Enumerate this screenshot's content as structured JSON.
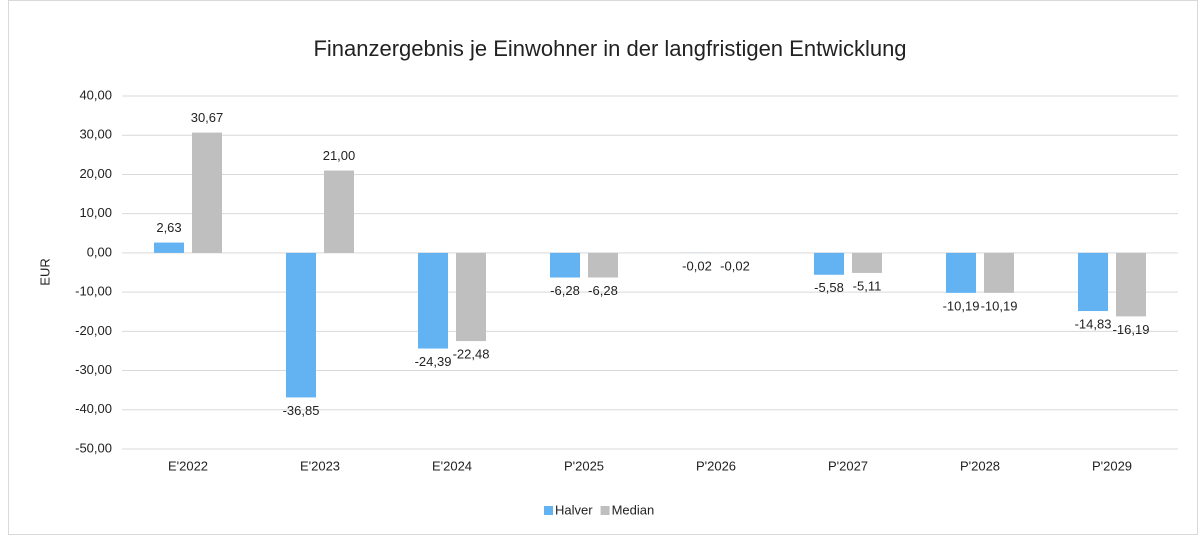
{
  "chart_data": {
    "type": "bar",
    "title": "Finanzergebnis je Einwohner in der langfristigen Entwicklung",
    "y_label": "EUR",
    "categories": [
      "E'2022",
      "E'2023",
      "E'2024",
      "P'2025",
      "P'2026",
      "P'2027",
      "P'2028",
      "P'2029"
    ],
    "series": [
      {
        "name": "Halver",
        "color": "#63b3f3",
        "values": [
          2.63,
          -36.85,
          -24.39,
          -6.28,
          -0.02,
          -5.58,
          -10.19,
          -14.83
        ],
        "value_labels": [
          "2,63",
          "-36,85",
          "-24,39",
          "-6,28",
          "-0,02",
          "-5,58",
          "-10,19",
          "-14,83"
        ]
      },
      {
        "name": "Median",
        "color": "#bfbfbf",
        "values": [
          30.67,
          21.0,
          -22.48,
          -6.28,
          -0.02,
          -5.11,
          -10.19,
          -16.19
        ],
        "value_labels": [
          "30,67",
          "21,00",
          "-22,48",
          "-6,28",
          "-0,02",
          "-5,11",
          "-10,19",
          "-16,19"
        ]
      }
    ],
    "ylim": [
      -50,
      40
    ],
    "yticks": [
      {
        "value": -50,
        "label": "-50,00"
      },
      {
        "value": -40,
        "label": "-40,00"
      },
      {
        "value": -30,
        "label": "-30,00"
      },
      {
        "value": -20,
        "label": "-20,00"
      },
      {
        "value": -10,
        "label": "-10,00"
      },
      {
        "value": 0,
        "label": "0,00"
      },
      {
        "value": 10,
        "label": "10,00"
      },
      {
        "value": 20,
        "label": "20,00"
      },
      {
        "value": 30,
        "label": "30,00"
      },
      {
        "value": 40,
        "label": "40,00"
      }
    ],
    "grid": true,
    "legend": "bottom"
  }
}
